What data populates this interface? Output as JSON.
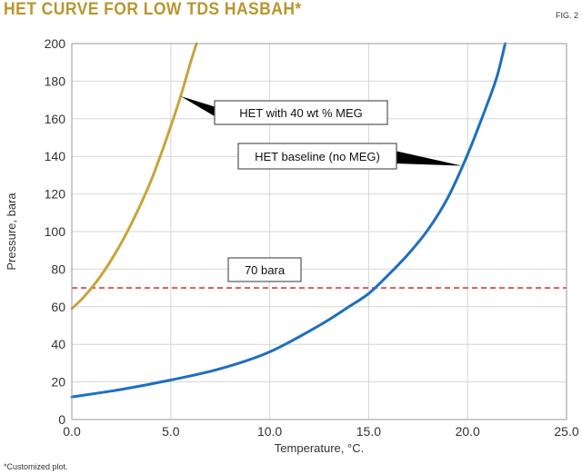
{
  "header": {
    "title": "HET CURVE FOR LOW TDS HASBAH*",
    "fig_label": "FIG. 2"
  },
  "footnote": "*Customized plot.",
  "colors": {
    "title": "#b8962e",
    "meg_curve": "#c8a43c",
    "baseline_curve": "#1f6fbf",
    "reference_line": "#e0383a",
    "grid": "#d6d6d6"
  },
  "chart_data": {
    "type": "line",
    "title": "HET CURVE FOR LOW TDS HASBAH*",
    "xlabel": "Temperature, °C.",
    "ylabel": "Pressure, bara",
    "xlim": [
      0,
      25
    ],
    "ylim": [
      0,
      200
    ],
    "x_ticks": [
      0,
      5,
      10,
      15,
      20,
      25
    ],
    "x_tick_labels": [
      "0.0",
      "5.0",
      "10.0",
      "15.0",
      "20.0",
      "25.0"
    ],
    "y_ticks": [
      0,
      20,
      40,
      60,
      80,
      100,
      120,
      140,
      160,
      180,
      200
    ],
    "y_tick_labels": [
      "0",
      "20",
      "40",
      "60",
      "80",
      "100",
      "120",
      "140",
      "160",
      "180",
      "200"
    ],
    "grid": true,
    "series": [
      {
        "name": "HET with 40 wt % MEG",
        "color": "#c8a43c",
        "x": [
          0.0,
          0.5,
          1.0,
          1.5,
          2.0,
          2.5,
          3.0,
          3.5,
          4.0,
          4.5,
          5.0,
          5.5,
          6.0,
          6.3
        ],
        "y": [
          59,
          64,
          70,
          77,
          85,
          94,
          104,
          115,
          127,
          141,
          156,
          172,
          190,
          200
        ]
      },
      {
        "name": "HET baseline (no MEG)",
        "color": "#1f6fbf",
        "x": [
          0,
          2.5,
          5,
          7.5,
          10,
          12.5,
          14,
          15,
          16,
          17,
          18,
          19,
          20,
          21,
          21.5,
          21.9
        ],
        "y": [
          12,
          16,
          21,
          27,
          36,
          50,
          60,
          67,
          77,
          88,
          101,
          118,
          141,
          168,
          183,
          200
        ]
      }
    ],
    "reference_line": {
      "label": "70 bara",
      "y": 70,
      "color": "#e0383a"
    },
    "annotations": [
      {
        "text": "HET with 40 wt % MEG",
        "points_to": {
          "x": 5.5,
          "y": 172
        }
      },
      {
        "text": "HET baseline (no MEG)",
        "points_to": {
          "x": 19.7,
          "y": 135
        }
      },
      {
        "text": "70 bara",
        "points_to": {
          "x": 11.5,
          "y": 82
        }
      }
    ]
  }
}
